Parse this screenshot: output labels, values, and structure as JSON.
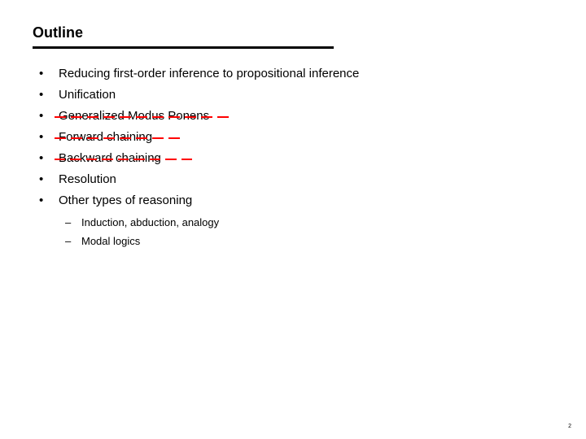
{
  "title": "Outline",
  "title_fontsize": 18,
  "title_fontweight": "bold",
  "underline_width": 370,
  "underline_height": 3,
  "underline_color": "#000000",
  "background_color": "#ffffff",
  "text_color": "#000000",
  "strike_color": "#ff0000",
  "body_fontsize": 15,
  "sub_fontsize": 13,
  "bullets": [
    {
      "text": "Reducing first-order inference to propositional inference",
      "struck": false,
      "strike_width": 0
    },
    {
      "text": "Unification",
      "struck": false,
      "strike_width": 0
    },
    {
      "text": "Generalized Modus Ponens",
      "struck": true,
      "strike_width": 225
    },
    {
      "text": "Forward chaining",
      "struck": true,
      "strike_width": 165
    },
    {
      "text": "Backward chaining",
      "struck": true,
      "strike_width": 175
    },
    {
      "text": "Resolution",
      "struck": false,
      "strike_width": 0
    },
    {
      "text": "Other types of reasoning",
      "struck": false,
      "strike_width": 0
    }
  ],
  "sub_bullets": [
    {
      "text": "Induction, abduction, analogy"
    },
    {
      "text": "Modal logics"
    }
  ],
  "strike_dash_width": 14,
  "strike_gap": 6,
  "page_number": "2"
}
